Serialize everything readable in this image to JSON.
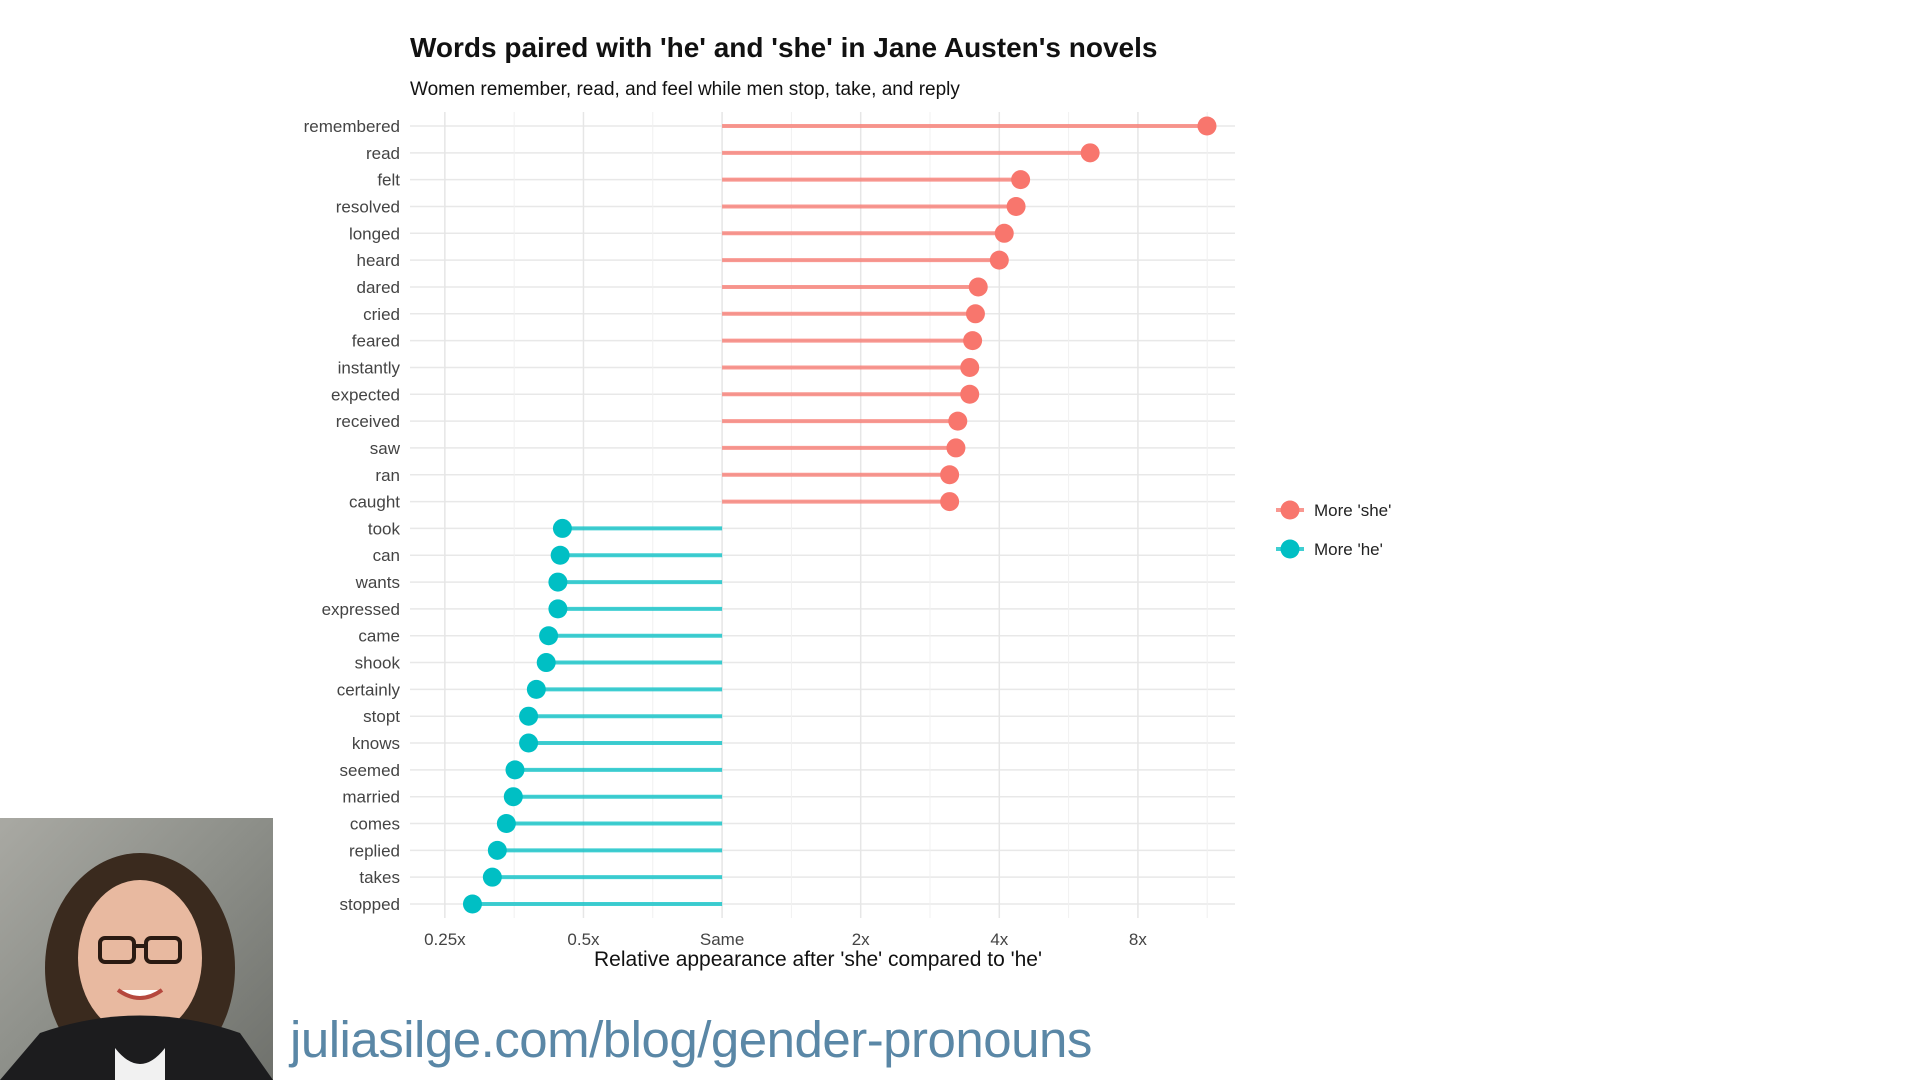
{
  "chart_data": {
    "type": "lollipop",
    "title": "Words paired with 'he' and 'she' in Jane Austen's novels",
    "subtitle": "Women remember, read, and feel while men stop, take, and reply",
    "xlabel": "Relative appearance after 'she' compared to 'he'",
    "ylabel": "",
    "x_scale": "log2",
    "xlim": [
      0.21,
      13
    ],
    "x_ticks": [
      {
        "value": 0.25,
        "label": "0.25x"
      },
      {
        "value": 0.5,
        "label": "0.5x"
      },
      {
        "value": 1,
        "label": "Same"
      },
      {
        "value": 2,
        "label": "2x"
      },
      {
        "value": 4,
        "label": "4x"
      },
      {
        "value": 8,
        "label": "8x"
      }
    ],
    "baseline": 1,
    "grid": true,
    "legend_position": "right",
    "series": [
      {
        "name": "More 'she'",
        "color": "#f8766d",
        "words": [
          "remembered",
          "read",
          "felt",
          "resolved",
          "longed",
          "heard",
          "dared",
          "cried",
          "feared",
          "instantly",
          "expected",
          "received",
          "saw",
          "ran",
          "caught"
        ]
      },
      {
        "name": "More 'he'",
        "color": "#00bfc4",
        "words": [
          "took",
          "can",
          "wants",
          "expressed",
          "came",
          "shook",
          "certainly",
          "stopt",
          "knows",
          "seemed",
          "married",
          "comes",
          "replied",
          "takes",
          "stopped"
        ]
      }
    ],
    "points": [
      {
        "word": "remembered",
        "value": 11.3
      },
      {
        "word": "read",
        "value": 6.3
      },
      {
        "word": "felt",
        "value": 4.45
      },
      {
        "word": "resolved",
        "value": 4.35
      },
      {
        "word": "longed",
        "value": 4.1
      },
      {
        "word": "heard",
        "value": 4.0
      },
      {
        "word": "dared",
        "value": 3.6
      },
      {
        "word": "cried",
        "value": 3.55
      },
      {
        "word": "feared",
        "value": 3.5
      },
      {
        "word": "instantly",
        "value": 3.45
      },
      {
        "word": "expected",
        "value": 3.45
      },
      {
        "word": "received",
        "value": 3.25
      },
      {
        "word": "saw",
        "value": 3.22
      },
      {
        "word": "ran",
        "value": 3.12
      },
      {
        "word": "caught",
        "value": 3.12
      },
      {
        "word": "took",
        "value": 0.45
      },
      {
        "word": "can",
        "value": 0.445
      },
      {
        "word": "wants",
        "value": 0.44
      },
      {
        "word": "expressed",
        "value": 0.44
      },
      {
        "word": "came",
        "value": 0.42
      },
      {
        "word": "shook",
        "value": 0.415
      },
      {
        "word": "certainly",
        "value": 0.395
      },
      {
        "word": "stopt",
        "value": 0.38
      },
      {
        "word": "knows",
        "value": 0.38
      },
      {
        "word": "seemed",
        "value": 0.355
      },
      {
        "word": "married",
        "value": 0.352
      },
      {
        "word": "comes",
        "value": 0.34
      },
      {
        "word": "replied",
        "value": 0.325
      },
      {
        "word": "takes",
        "value": 0.317
      },
      {
        "word": "stopped",
        "value": 0.287
      }
    ]
  },
  "footer": {
    "url": "juliasilge.com/blog/gender-pronouns"
  }
}
